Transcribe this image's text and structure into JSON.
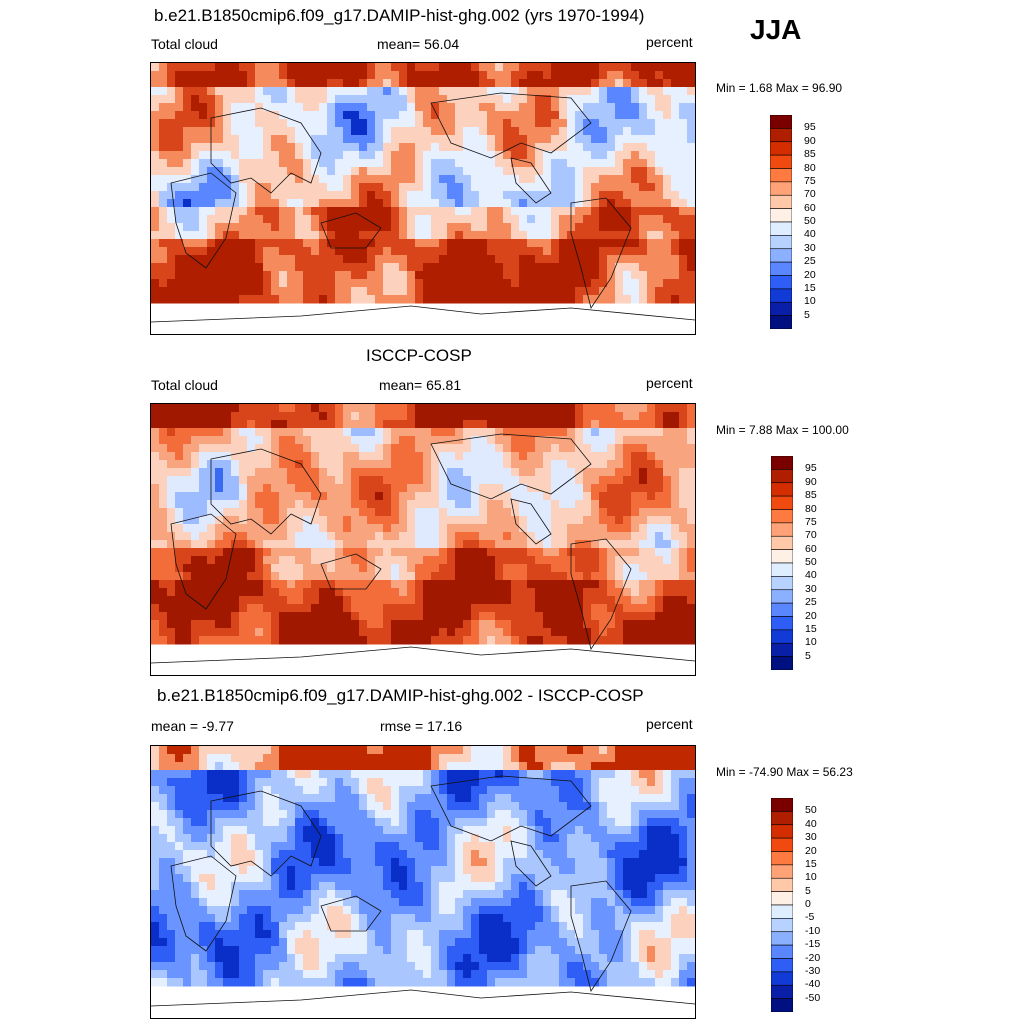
{
  "season": "JJA",
  "panels": [
    {
      "id": "model",
      "title": "b.e21.B1850cmip6.f09_g17.DAMIP-hist-ghg.002 (yrs 1970-1994)",
      "left_label": "Total cloud",
      "center_label": "mean=  56.04",
      "right_label": "percent",
      "minmax": "Min =   1.68 Max =  96.90",
      "colorbar": {
        "labels": [
          "95",
          "90",
          "85",
          "80",
          "75",
          "70",
          "60",
          "50",
          "40",
          "30",
          "25",
          "20",
          "15",
          "10",
          "5"
        ],
        "colors": [
          "#7a0000",
          "#b01e00",
          "#d42d00",
          "#f04a10",
          "#ff7a40",
          "#ffa278",
          "#ffc8a8",
          "#fff0e6",
          "#dfeeff",
          "#b8d2ff",
          "#8ab0ff",
          "#5a86ff",
          "#2f5ef6",
          "#123ad6",
          "#0a1fa8",
          "#001080"
        ]
      },
      "map_palette": [
        "#b01e00",
        "#d9451a",
        "#f58a5c",
        "#fcd2be",
        "#e6f0ff",
        "#a9c6ff",
        "#5a86ff",
        "#0a2fc8"
      ]
    },
    {
      "id": "obs",
      "title": "ISCCP-COSP",
      "left_label": "Total cloud",
      "center_label": "mean=  65.81",
      "right_label": "percent",
      "minmax": "Min =   7.88 Max = 100.00",
      "colorbar": {
        "labels": [
          "95",
          "90",
          "85",
          "80",
          "75",
          "70",
          "60",
          "50",
          "40",
          "30",
          "25",
          "20",
          "15",
          "10",
          "5"
        ],
        "colors": [
          "#7a0000",
          "#b01e00",
          "#d42d00",
          "#f04a10",
          "#ff7a40",
          "#ffa278",
          "#ffc8a8",
          "#fff0e6",
          "#dfeeff",
          "#b8d2ff",
          "#8ab0ff",
          "#5a86ff",
          "#2f5ef6",
          "#123ad6",
          "#0a1fa8",
          "#001080"
        ]
      },
      "map_palette": [
        "#a01800",
        "#d9451a",
        "#f26d3a",
        "#f8a47e",
        "#fcd2be",
        "#dfeaff",
        "#9cbcff",
        "#3a6af0"
      ]
    },
    {
      "id": "diff",
      "title": "b.e21.B1850cmip6.f09_g17.DAMIP-hist-ghg.002 - ISCCP-COSP",
      "left_label": "mean =  -9.77",
      "center_label": "rmse =  17.16",
      "right_label": "percent",
      "minmax": "Min = -74.90 Max =  56.23",
      "colorbar": {
        "labels": [
          "50",
          "40",
          "30",
          "20",
          "15",
          "10",
          "5",
          "0",
          "-5",
          "-10",
          "-15",
          "-20",
          "-30",
          "-40",
          "-50"
        ],
        "colors": [
          "#7a0000",
          "#b01e00",
          "#d42d00",
          "#f04a10",
          "#ff7a40",
          "#ffa278",
          "#ffc8a8",
          "#fff0e6",
          "#dfeeff",
          "#b8d2ff",
          "#8ab0ff",
          "#5a86ff",
          "#2f5ef6",
          "#123ad6",
          "#0a1fa8",
          "#001080"
        ]
      },
      "map_palette": [
        "#c02800",
        "#f58a5c",
        "#fcd2be",
        "#e6f0ff",
        "#a9c6ff",
        "#6a94ff",
        "#2f5ef6",
        "#0a2fc8"
      ]
    }
  ]
}
